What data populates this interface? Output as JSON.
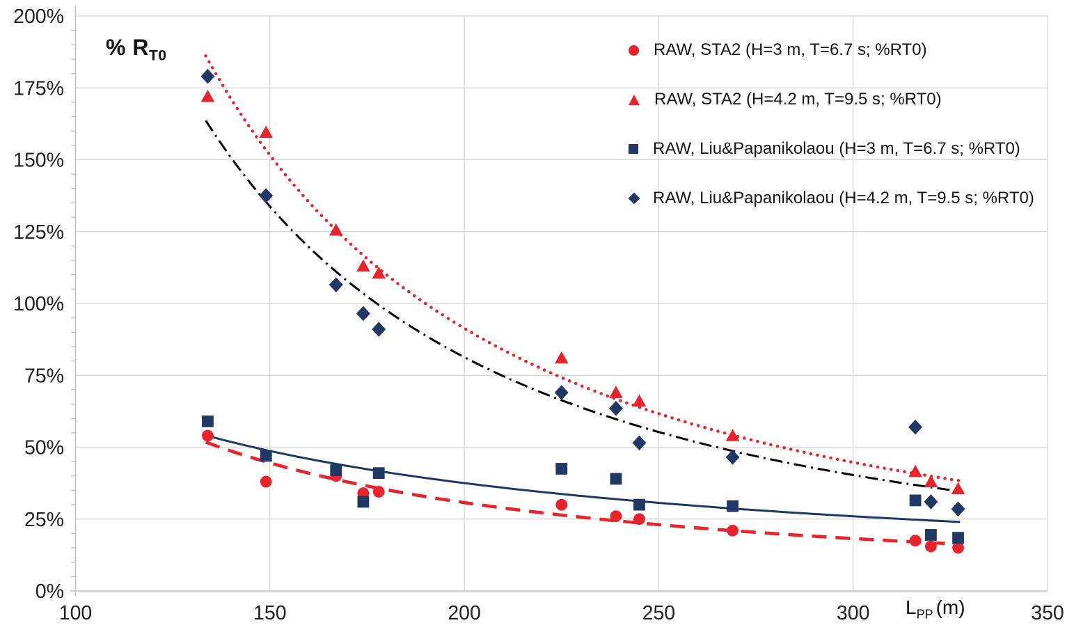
{
  "chart_data": {
    "type": "scatter",
    "y_axis_title": {
      "main": "% R",
      "sub": "T0"
    },
    "x_axis_title": {
      "main": "L",
      "sub": "PP",
      "suffix": "(m)"
    },
    "x_ticks": [
      "100",
      "150",
      "200",
      "250",
      "300",
      "350"
    ],
    "y_ticks": [
      "0%",
      "25%",
      "50%",
      "75%",
      "100%",
      "125%",
      "150%",
      "175%",
      "200%"
    ],
    "xlim": [
      100,
      350
    ],
    "ylim": [
      0,
      200
    ],
    "grid": true,
    "legend_position": "top-right",
    "x": [
      134,
      149,
      167,
      174,
      178,
      225,
      239,
      245,
      269,
      316,
      320,
      327
    ],
    "series": [
      {
        "name": "RAW, STA2 (H=3 m, T=6.7 s; %RT0)",
        "marker": "circle",
        "color": "#E8232B",
        "values": [
          54,
          38,
          40,
          34,
          34.5,
          30,
          26,
          25,
          21,
          17.5,
          15.5,
          15
        ],
        "trend": {
          "style": "dashed",
          "color": "#E8232B",
          "a": 28420,
          "b": -1.289
        }
      },
      {
        "name": "RAW, STA2 (H=4.2 m, T=9.5 s; %RT0)",
        "marker": "triangle",
        "color": "#E8232B",
        "values": [
          172,
          159.5,
          125.5,
          113,
          110.5,
          81,
          69,
          66,
          54,
          41.5,
          38,
          35.5
        ],
        "trend": {
          "style": "dotted",
          "color": "#E8232B",
          "a": 1030000,
          "b": -1.761
        }
      },
      {
        "name": "RAW, Liu&Papanikolaou (H=3 m, T=6.7 s; %RT0)",
        "marker": "square",
        "color": "#1F3864",
        "values": [
          59,
          47,
          42,
          31,
          41,
          42.5,
          39,
          30,
          29.5,
          31.5,
          19.5,
          18.5
        ],
        "trend": {
          "style": "solid",
          "color": "#1F3864",
          "a": 4584,
          "b": -0.907
        }
      },
      {
        "name": "RAW, Liu&Papanikolaou (H=4.2 m, T=9.5 s; %RT0)",
        "marker": "diamond",
        "color": "#1F3864",
        "values": [
          179,
          137.5,
          106.5,
          96.5,
          91,
          69,
          63.5,
          51.5,
          46.5,
          57,
          31,
          28.5
        ],
        "trend": {
          "style": "dashdot",
          "color": "#000000",
          "a": 778000,
          "b": -1.73
        }
      }
    ],
    "trend_domain": [
      133.5,
      328
    ],
    "colors": {
      "grid": "#D9D9D9",
      "axis": "#BFBFBF",
      "tick_text": "#212121",
      "red": "#E8232B",
      "navy": "#1F3864",
      "black_line": "#000000"
    }
  }
}
